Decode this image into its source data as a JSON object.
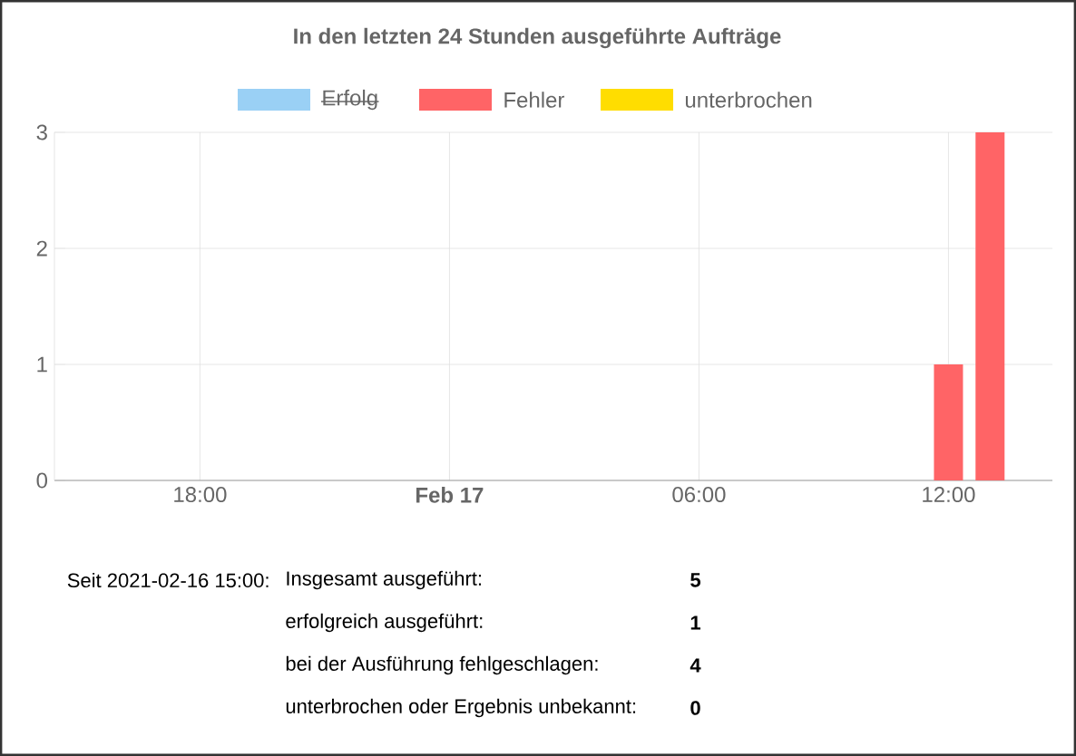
{
  "chart_data": {
    "type": "bar",
    "title": "In den letzten 24 Stunden ausgeführte Aufträge",
    "x": [
      "2021-02-17T12:00",
      "2021-02-17T13:00"
    ],
    "series": [
      {
        "name": "Erfolg",
        "color": "#9ad0f5",
        "values": [
          null,
          null
        ]
      },
      {
        "name": "Fehler",
        "color": "#ff6466",
        "values": [
          1,
          3
        ]
      },
      {
        "name": "unterbrochen",
        "color": "#ffdd00",
        "values": [
          0,
          0
        ]
      }
    ],
    "xlim": [
      "2021-02-16T14:30",
      "2021-02-17T14:30"
    ],
    "xticks": [
      {
        "value": "2021-02-16T18:00",
        "label": "18:00"
      },
      {
        "value": "2021-02-17T00:00",
        "label": "**Feb 17**"
      },
      {
        "value": "2021-02-17T06:00",
        "label": "06:00"
      },
      {
        "value": "2021-02-17T12:00",
        "label": "12:00"
      }
    ],
    "ylim": [
      0,
      3
    ],
    "yticks": [
      0,
      1,
      2,
      3
    ],
    "grid": true,
    "legend": "top",
    "annotations": [
      "Seit  2021-02-16 15:00:",
      "Insgesamt ausgeführt:",
      "5",
      "erfolgreich ausgeführt:",
      "1",
      "bei der Ausführung fehlgeschlagen:",
      "4",
      "unterbrochen oder Ergebnis unbekannt:",
      "0"
    ]
  }
}
